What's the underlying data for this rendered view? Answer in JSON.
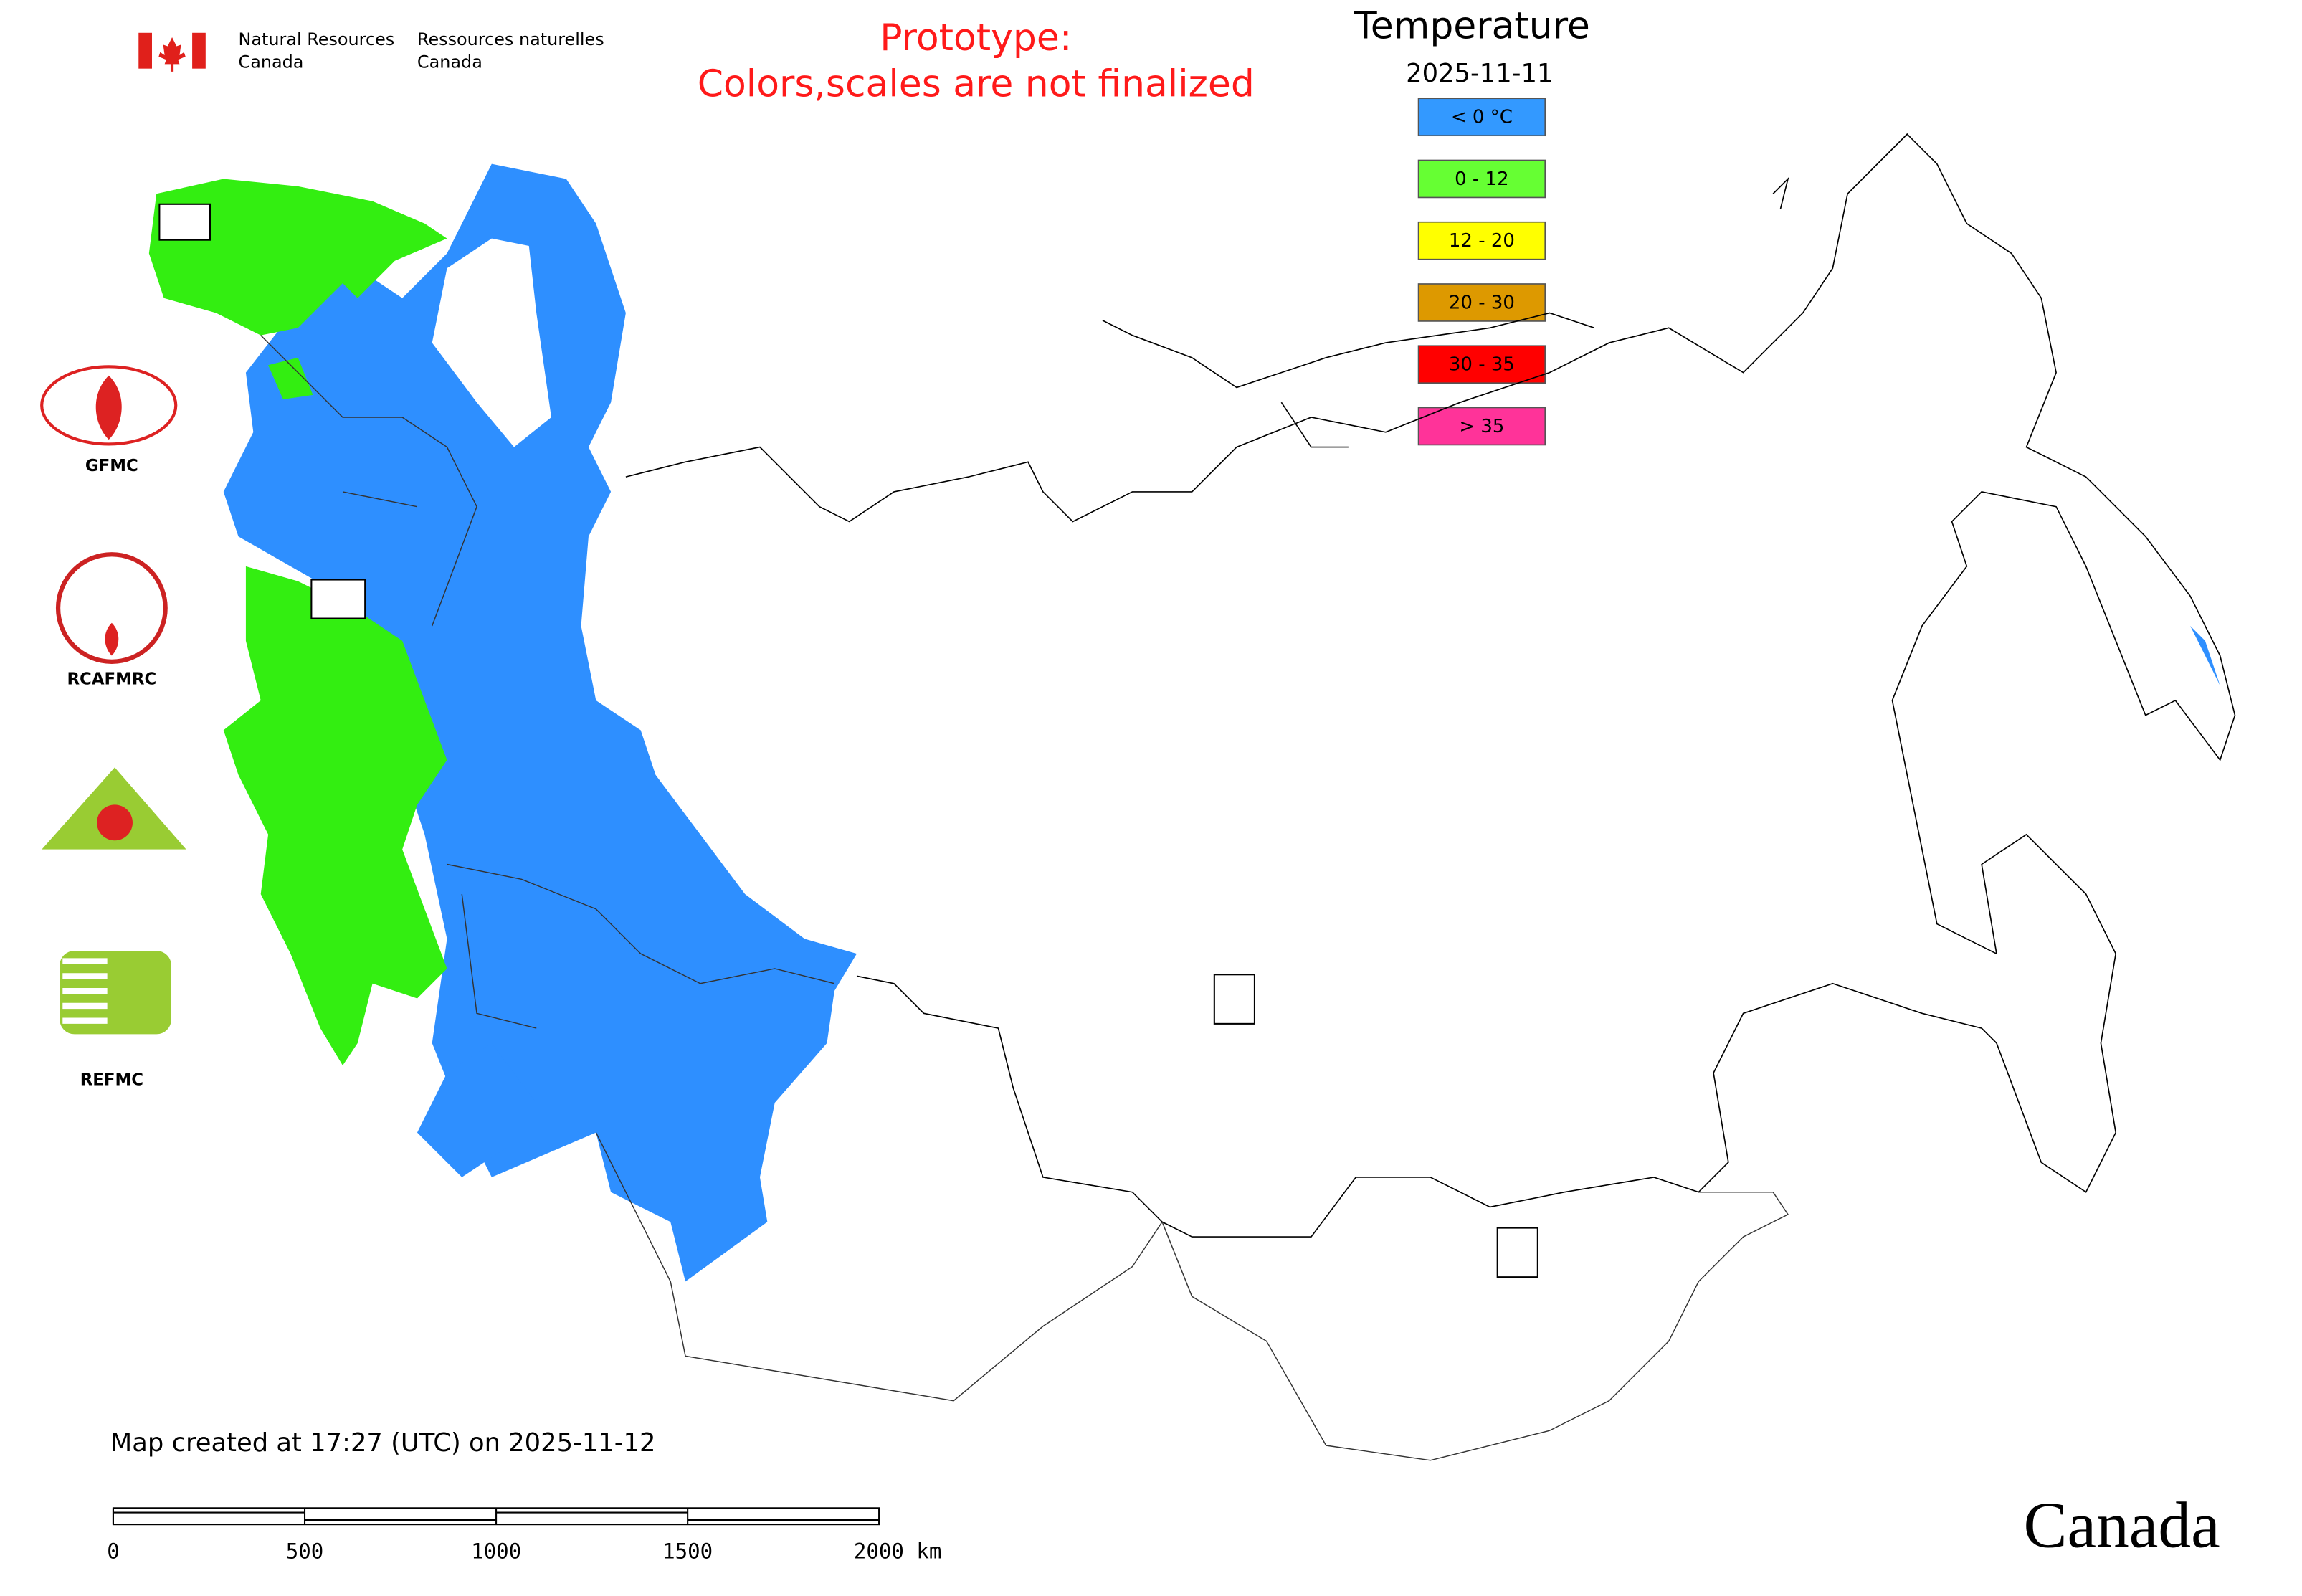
{
  "header": {
    "agency_en": [
      "Natural Resources",
      "Canada"
    ],
    "agency_fr": [
      "Ressources naturelles",
      "Canada"
    ],
    "notice": [
      "Prototype:",
      "Colors,scales are not finalized"
    ]
  },
  "legend": {
    "title": "Temperature",
    "date": "2025-11-11",
    "items": [
      {
        "label": "< 0 °C",
        "color": "#3399ff"
      },
      {
        "label": "0 - 12",
        "color": "#66ff33"
      },
      {
        "label": "12 - 20",
        "color": "#ffff00"
      },
      {
        "label": "20 - 30",
        "color": "#dd9900"
      },
      {
        "label": "30 - 35",
        "color": "#ff0000"
      },
      {
        "label": "> 35",
        "color": "#ff3399"
      }
    ]
  },
  "logos": [
    "GFMC",
    "RCAFMRC",
    "REFMC"
  ],
  "footer": {
    "created": "Map created at 17:27 (UTC) on 2025-11-12",
    "scale_labels": [
      "0",
      "500",
      "1000",
      "1500",
      "2000 km"
    ],
    "wordmark": "Canada"
  }
}
